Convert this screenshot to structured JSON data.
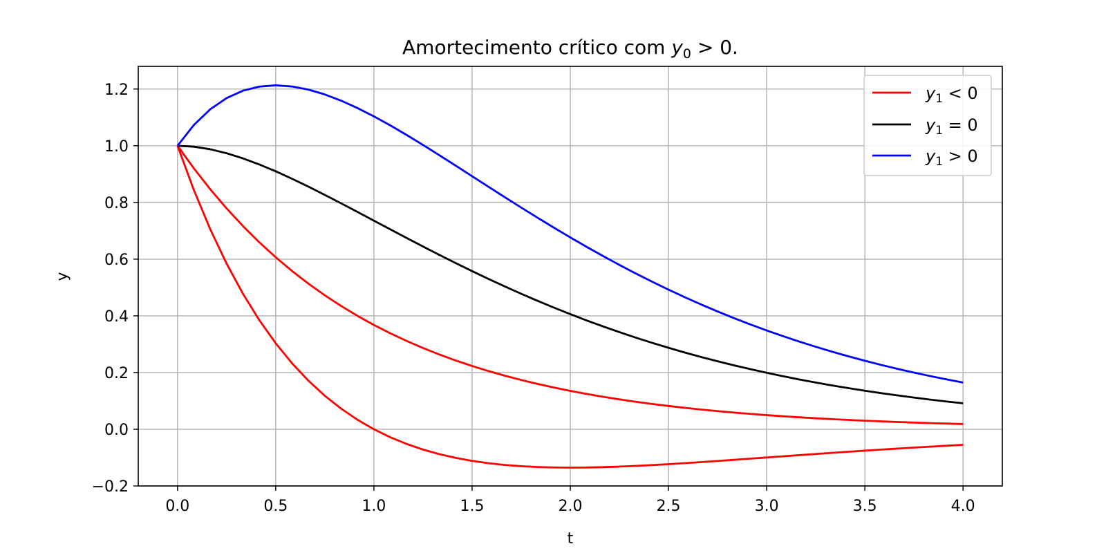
{
  "chart_data": {
    "type": "line",
    "title": "Amortecimento crítico com y₀ > 0.",
    "title_parts": {
      "prefix": "Amortecimento crítico com ",
      "var": "y",
      "sub": "0",
      "rel": " > 0."
    },
    "xlabel": "t",
    "ylabel": "y",
    "xlim": [
      -0.2,
      4.2
    ],
    "ylim": [
      -0.2,
      1.28
    ],
    "xticks": [
      0.0,
      0.5,
      1.0,
      1.5,
      2.0,
      2.5,
      3.0,
      3.5,
      4.0
    ],
    "xtick_labels": [
      "0.0",
      "0.5",
      "1.0",
      "1.5",
      "2.0",
      "2.5",
      "3.0",
      "3.5",
      "4.0"
    ],
    "yticks": [
      -0.2,
      0.0,
      0.2,
      0.4,
      0.6,
      0.8,
      1.0,
      1.2
    ],
    "ytick_labels": [
      "−0.2",
      "0.0",
      "0.2",
      "0.4",
      "0.6",
      "0.8",
      "1.0",
      "1.2"
    ],
    "grid": true,
    "legend_position": "top-right",
    "legend": [
      {
        "var": "y",
        "sub": "1",
        "rel": " < 0",
        "color": "#ff0000"
      },
      {
        "var": "y",
        "sub": "1",
        "rel": " = 0",
        "color": "#000000"
      },
      {
        "var": "y",
        "sub": "1",
        "rel": " > 0",
        "color": "#0000ff"
      }
    ],
    "t_range": [
      0,
      4
    ],
    "samples": 49,
    "series": [
      {
        "name": "y1 < 0 (a)",
        "color": "#ff0000",
        "y0": 1,
        "y1": -1,
        "legend_index": 0
      },
      {
        "name": "y1 < 0 (b)",
        "color": "#ff0000",
        "y0": 1,
        "y1": -2,
        "legend_index": 0
      },
      {
        "name": "y1 = 0",
        "color": "#000000",
        "y0": 1,
        "y1": 0,
        "legend_index": 1
      },
      {
        "name": "y1 > 0",
        "color": "#0000ff",
        "y0": 1,
        "y1": 1,
        "legend_index": 2
      }
    ]
  }
}
